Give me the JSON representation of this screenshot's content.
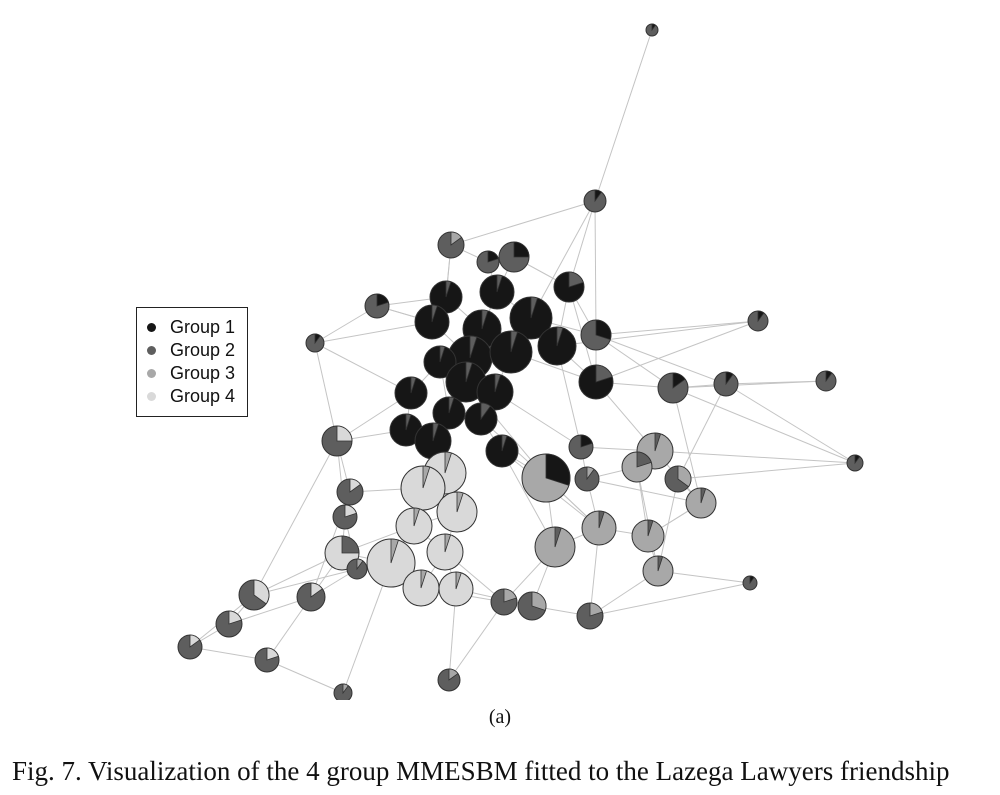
{
  "legend": {
    "items": [
      {
        "label": "Group 1",
        "color": "#161616"
      },
      {
        "label": "Group 2",
        "color": "#5e5e5e"
      },
      {
        "label": "Group 3",
        "color": "#a8a8a8"
      },
      {
        "label": "Group 4",
        "color": "#d9d9d9"
      }
    ]
  },
  "panel_label": "(a)",
  "caption": "Fig. 7.  Visualization of the 4 group MMESBM fitted to the Lazega Lawyers friendship",
  "colors": {
    "edge": "#c4c4c4",
    "node_outline": "#333333",
    "group1": "#161616",
    "group2": "#5e5e5e",
    "group3": "#a8a8a8",
    "group4": "#d9d9d9"
  }
}
